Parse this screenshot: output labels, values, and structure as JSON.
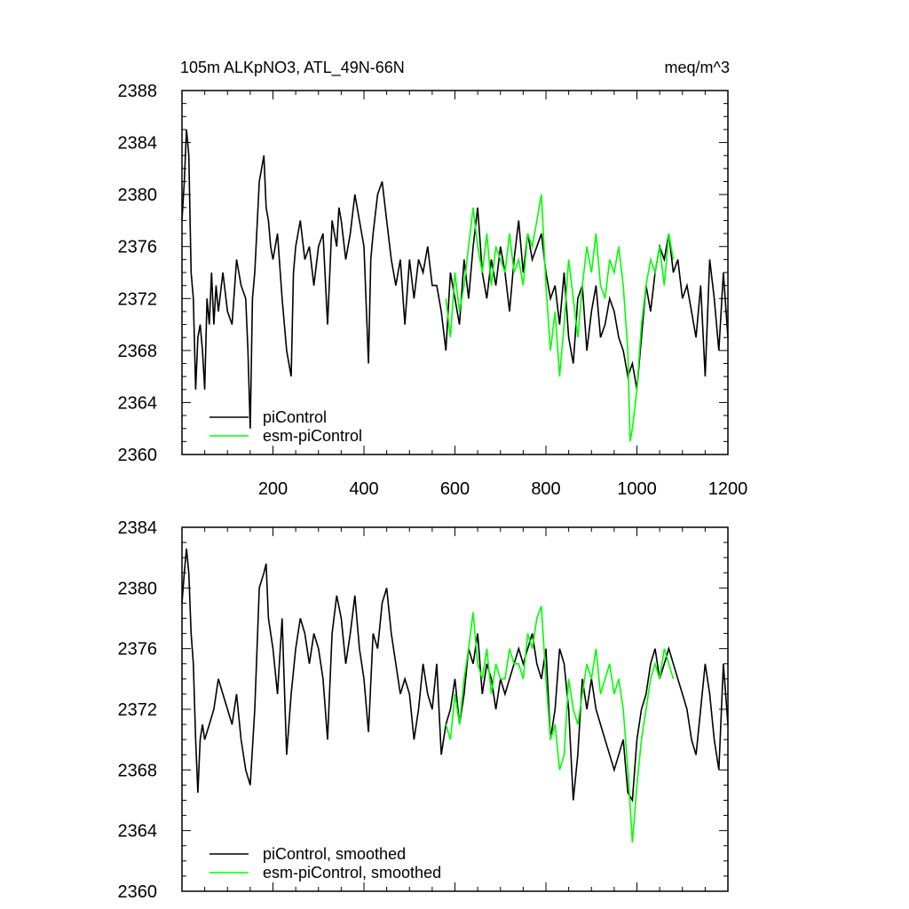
{
  "chart_data": [
    {
      "type": "line",
      "title": "105m ALKpNO3, ATL_49N-66N",
      "units": "meq/m^3",
      "xlabel": "",
      "ylabel": "",
      "xlim": [
        0,
        1200
      ],
      "ylim": [
        2360,
        2388
      ],
      "xticks": [
        200,
        400,
        600,
        800,
        1000,
        1200
      ],
      "xtick_labels": [
        "200",
        "400",
        "600",
        "800",
        "1000",
        "1200"
      ],
      "yticks": [
        2360,
        2364,
        2368,
        2372,
        2376,
        2380,
        2384,
        2388
      ],
      "ytick_labels": [
        "2360",
        "2364",
        "2368",
        "2372",
        "2376",
        "2380",
        "2384",
        "2388"
      ],
      "legend_position": "bottom-left",
      "series": [
        {
          "name": "piControl",
          "color": "#000000",
          "x": [
            0,
            5,
            10,
            15,
            20,
            25,
            30,
            35,
            40,
            45,
            50,
            55,
            60,
            65,
            70,
            75,
            80,
            90,
            100,
            110,
            120,
            130,
            140,
            145,
            150,
            152,
            155,
            160,
            170,
            180,
            185,
            190,
            195,
            200,
            210,
            220,
            230,
            240,
            245,
            250,
            260,
            270,
            280,
            290,
            300,
            310,
            320,
            330,
            340,
            345,
            350,
            360,
            370,
            380,
            390,
            400,
            410,
            415,
            420,
            430,
            440,
            450,
            460,
            470,
            480,
            490,
            500,
            510,
            520,
            530,
            540,
            550,
            560,
            570,
            580,
            590,
            600,
            610,
            620,
            630,
            640,
            650,
            660,
            670,
            680,
            690,
            700,
            710,
            720,
            730,
            740,
            750,
            760,
            770,
            780,
            790,
            800,
            810,
            820,
            830,
            840,
            850,
            860,
            870,
            880,
            890,
            900,
            910,
            920,
            930,
            940,
            950,
            960,
            970,
            980,
            990,
            1000,
            1010,
            1020,
            1030,
            1040,
            1050,
            1060,
            1070,
            1080,
            1090,
            1100,
            1110,
            1120,
            1130,
            1140,
            1150,
            1160,
            1170,
            1180,
            1190,
            1200
          ],
          "values": [
            2378,
            2381,
            2385,
            2383,
            2374,
            2372,
            2365,
            2369,
            2370,
            2368,
            2365,
            2372,
            2370,
            2374,
            2370,
            2373,
            2371,
            2374,
            2371,
            2370,
            2375,
            2373,
            2372,
            2368,
            2362,
            2366,
            2372,
            2374,
            2381,
            2383,
            2379,
            2378,
            2376,
            2375,
            2377,
            2372,
            2368,
            2366,
            2374,
            2376,
            2378,
            2375,
            2376,
            2373,
            2376,
            2377,
            2370,
            2378,
            2376,
            2379,
            2378,
            2375,
            2377,
            2380,
            2378,
            2376,
            2367,
            2375,
            2377,
            2380,
            2381,
            2378,
            2375,
            2373,
            2375,
            2370,
            2375,
            2372,
            2375,
            2374,
            2376,
            2373,
            2373,
            2371,
            2368,
            2374,
            2372,
            2370,
            2375,
            2372,
            2376,
            2379,
            2374,
            2372,
            2375,
            2373,
            2376,
            2374,
            2371,
            2375,
            2378,
            2374,
            2377,
            2375,
            2376,
            2377,
            2374,
            2372,
            2373,
            2370,
            2374,
            2369,
            2367,
            2372,
            2373,
            2368,
            2371,
            2373,
            2369,
            2370,
            2372,
            2371,
            2369,
            2368,
            2366,
            2367,
            2365,
            2369,
            2373,
            2371,
            2374,
            2376,
            2375,
            2377,
            2374,
            2375,
            2372,
            2373,
            2371,
            2369,
            2373,
            2366,
            2375,
            2372,
            2368,
            2374,
            2369
          ]
        },
        {
          "name": "esm-piControl",
          "color": "#00ff00",
          "x": [
            580,
            590,
            600,
            610,
            620,
            630,
            640,
            650,
            660,
            670,
            680,
            690,
            700,
            710,
            720,
            730,
            740,
            750,
            760,
            770,
            780,
            790,
            800,
            810,
            820,
            830,
            840,
            850,
            860,
            870,
            880,
            890,
            900,
            910,
            920,
            930,
            940,
            950,
            960,
            970,
            980,
            985,
            990,
            1000,
            1010,
            1020,
            1030,
            1040,
            1050,
            1060,
            1070,
            1080
          ],
          "values": [
            2372,
            2369,
            2374,
            2371,
            2373,
            2376,
            2379,
            2376,
            2374,
            2377,
            2373,
            2376,
            2375,
            2374,
            2377,
            2374,
            2375,
            2373,
            2377,
            2376,
            2378,
            2380,
            2373,
            2368,
            2371,
            2366,
            2370,
            2375,
            2372,
            2369,
            2373,
            2376,
            2374,
            2377,
            2373,
            2372,
            2375,
            2374,
            2376,
            2373,
            2368,
            2361,
            2362,
            2365,
            2370,
            2373,
            2375,
            2374,
            2376,
            2373,
            2377,
            2375
          ]
        }
      ]
    },
    {
      "type": "line",
      "title": "",
      "xlabel": "",
      "ylabel": "",
      "xlim": [
        0,
        1200
      ],
      "ylim": [
        2360,
        2384
      ],
      "xticks": [
        200,
        400,
        600,
        800,
        1000,
        1200
      ],
      "yticks": [
        2360,
        2364,
        2368,
        2372,
        2376,
        2380,
        2384
      ],
      "ytick_labels": [
        "2360",
        "2364",
        "2368",
        "2372",
        "2376",
        "2380",
        "2384"
      ],
      "legend_position": "bottom-left",
      "series": [
        {
          "name": "piControl, smoothed",
          "color": "#000000",
          "x": [
            0,
            5,
            10,
            15,
            20,
            25,
            30,
            35,
            40,
            45,
            50,
            60,
            70,
            80,
            90,
            100,
            110,
            120,
            130,
            140,
            150,
            160,
            170,
            180,
            185,
            190,
            200,
            210,
            220,
            230,
            240,
            250,
            260,
            270,
            280,
            290,
            300,
            310,
            320,
            330,
            340,
            350,
            360,
            370,
            380,
            390,
            400,
            410,
            420,
            430,
            440,
            450,
            460,
            470,
            480,
            490,
            500,
            510,
            520,
            530,
            540,
            550,
            560,
            570,
            580,
            590,
            600,
            610,
            620,
            630,
            640,
            650,
            660,
            670,
            680,
            690,
            700,
            710,
            720,
            730,
            740,
            750,
            760,
            770,
            780,
            790,
            800,
            810,
            820,
            830,
            840,
            850,
            860,
            870,
            880,
            890,
            900,
            910,
            920,
            930,
            940,
            950,
            960,
            970,
            980,
            990,
            1000,
            1010,
            1020,
            1030,
            1040,
            1050,
            1060,
            1070,
            1080,
            1090,
            1100,
            1110,
            1120,
            1130,
            1140,
            1150,
            1160,
            1170,
            1180,
            1190,
            1200
          ],
          "values": [
            2379,
            2381,
            2382.6,
            2381,
            2377,
            2375,
            2370,
            2366.5,
            2370,
            2371,
            2370,
            2371,
            2372,
            2374,
            2373,
            2372,
            2371,
            2373,
            2370,
            2368,
            2367,
            2372,
            2380,
            2381,
            2381.6,
            2378,
            2376,
            2373,
            2378,
            2369,
            2373,
            2376,
            2378,
            2377,
            2375,
            2377,
            2376,
            2374,
            2370,
            2377,
            2379.5,
            2378,
            2375,
            2377,
            2379.5,
            2376,
            2374,
            2370.5,
            2377,
            2376,
            2379,
            2380,
            2377,
            2375,
            2373,
            2374,
            2373,
            2370,
            2372,
            2375,
            2373,
            2372,
            2375,
            2369,
            2371,
            2372,
            2374,
            2371,
            2373,
            2376,
            2375,
            2377,
            2373,
            2375,
            2374,
            2372,
            2374,
            2373,
            2374,
            2375,
            2376,
            2375,
            2376,
            2377,
            2375,
            2374,
            2376,
            2370,
            2372,
            2376,
            2375,
            2372,
            2366,
            2369,
            2374,
            2372,
            2374,
            2372,
            2371,
            2370,
            2369,
            2368,
            2369,
            2370,
            2366.5,
            2366,
            2370,
            2372,
            2373,
            2375,
            2376,
            2374,
            2375,
            2376,
            2375,
            2374,
            2373,
            2372,
            2370,
            2369,
            2372,
            2375,
            2373,
            2370,
            2368,
            2375,
            2371
          ]
        },
        {
          "name": "esm-piControl, smoothed",
          "color": "#00ff00",
          "x": [
            580,
            590,
            600,
            610,
            620,
            630,
            640,
            650,
            660,
            670,
            680,
            690,
            700,
            710,
            720,
            730,
            740,
            750,
            760,
            770,
            780,
            790,
            800,
            810,
            820,
            830,
            840,
            850,
            860,
            870,
            880,
            890,
            900,
            910,
            920,
            930,
            940,
            950,
            960,
            970,
            980,
            990,
            1000,
            1010,
            1020,
            1030,
            1040,
            1050,
            1060,
            1070,
            1080
          ],
          "values": [
            2371,
            2370,
            2373,
            2371,
            2374,
            2376,
            2378.4,
            2375,
            2374,
            2376,
            2373,
            2375,
            2374,
            2374,
            2376,
            2375,
            2375,
            2374,
            2377,
            2376,
            2378,
            2378.8,
            2374,
            2370,
            2371,
            2368,
            2369,
            2374,
            2372,
            2371,
            2373,
            2375,
            2374,
            2376,
            2373,
            2374,
            2375,
            2373,
            2374,
            2372,
            2368,
            2363.2,
            2367,
            2370,
            2372,
            2374,
            2375,
            2374,
            2376,
            2375,
            2374
          ]
        }
      ]
    }
  ]
}
